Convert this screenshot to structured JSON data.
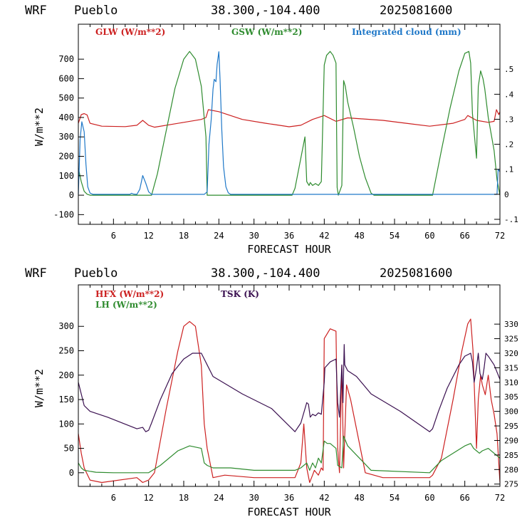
{
  "header": {
    "model": "WRF",
    "station": "Pueblo",
    "coords": "38.300,-104.400",
    "date": "2025081600"
  },
  "colors": {
    "red": "#cc2020",
    "green": "#2e8b2e",
    "blue": "#1f78c8",
    "purple": "#3a1050"
  },
  "chart_data": [
    {
      "type": "line",
      "xlabel": "FORECAST HOUR",
      "ylabel": "W/m**2",
      "xlim": [
        0,
        72
      ],
      "ylim": [
        -150,
        880
      ],
      "y2lim": [
        -0.12,
        0.68
      ],
      "xticks": [
        6,
        12,
        18,
        24,
        30,
        36,
        42,
        48,
        54,
        60,
        66,
        72
      ],
      "yticks": [
        -100,
        0,
        100,
        200,
        300,
        400,
        500,
        600,
        700
      ],
      "y2ticks": [
        -0.1,
        0,
        0.1,
        0.2,
        0.3,
        0.4,
        0.5
      ],
      "y2ticklabels": [
        "-.1",
        "0",
        ".1",
        ".2",
        ".3",
        ".4",
        ".5"
      ],
      "grid": false,
      "legend_position": "top",
      "series": [
        {
          "name": "GLW (W/m**2)",
          "color": "#cc2020",
          "axis": "left",
          "x": [
            0,
            0.5,
            1,
            1.5,
            2,
            4,
            8,
            10,
            11,
            12,
            13,
            18,
            21,
            21.8,
            22.2,
            24,
            28,
            32,
            36,
            38,
            40,
            42,
            44,
            46,
            52,
            56,
            60,
            64,
            66,
            66.5,
            68,
            70,
            71,
            71.4,
            71.8,
            72
          ],
          "y": [
            370,
            415,
            420,
            413,
            370,
            355,
            353,
            360,
            385,
            360,
            350,
            375,
            390,
            400,
            440,
            430,
            390,
            370,
            352,
            360,
            390,
            410,
            380,
            398,
            385,
            370,
            355,
            370,
            390,
            410,
            385,
            375,
            380,
            440,
            415,
            430
          ]
        },
        {
          "name": "GSW (W/m**2)",
          "color": "#2e8b2e",
          "axis": "left",
          "x": [
            0,
            0.5,
            1,
            1.5,
            2,
            12.5,
            13.5,
            15,
            16.5,
            18,
            19,
            20,
            21,
            21.8,
            22,
            36.5,
            37,
            38,
            38.7,
            39,
            39.4,
            39.6,
            40,
            40.5,
            41,
            41.5,
            42,
            42.4,
            43,
            43.5,
            44,
            44.2,
            44.4,
            45,
            45.3,
            45.6,
            46,
            47,
            48,
            49,
            50,
            50.5,
            60.5,
            62,
            63.5,
            65,
            66,
            66.7,
            67,
            67.3,
            68,
            68.3,
            68.7,
            69.1,
            69.4,
            70,
            71,
            71.5,
            72
          ],
          "y": [
            140,
            70,
            20,
            5,
            0,
            0,
            110,
            330,
            550,
            700,
            740,
            700,
            560,
            300,
            0,
            0,
            35,
            190,
            300,
            70,
            50,
            65,
            50,
            60,
            50,
            70,
            670,
            720,
            740,
            720,
            680,
            40,
            0,
            50,
            590,
            560,
            480,
            350,
            200,
            90,
            10,
            0,
            0,
            230,
            450,
            640,
            730,
            740,
            680,
            420,
            190,
            560,
            640,
            600,
            550,
            400,
            230,
            80,
            0
          ]
        },
        {
          "name": "Integrated cloud (mm)",
          "color": "#1f78c8",
          "axis": "right",
          "x": [
            0,
            0.3,
            0.6,
            1,
            1.3,
            1.6,
            2,
            2.5,
            3,
            5,
            8.8,
            9.1,
            9.4,
            10,
            10.5,
            11,
            11.5,
            12,
            12.5,
            21.5,
            22,
            22.3,
            22.7,
            23,
            23.2,
            23.5,
            23.7,
            24,
            24.2,
            24.5,
            24.8,
            25.2,
            25.6,
            26,
            71.5,
            71.7,
            72
          ],
          "y": [
            0,
            0.22,
            0.29,
            0.25,
            0.12,
            0.03,
            0.005,
            0,
            0,
            0,
            0,
            0.004,
            0.001,
            0,
            0.02,
            0.075,
            0.045,
            0.01,
            0,
            0,
            0.01,
            0.2,
            0.3,
            0.42,
            0.46,
            0.45,
            0.52,
            0.57,
            0.46,
            0.26,
            0.11,
            0.03,
            0.006,
            0,
            0,
            0.1,
            0.09
          ]
        }
      ]
    },
    {
      "type": "line",
      "xlabel": "FORECAST HOUR",
      "ylabel": "W/m**2",
      "xlim": [
        0,
        72
      ],
      "ylim": [
        -28,
        385
      ],
      "y2lim": [
        274.2,
        343.5
      ],
      "xticks": [
        6,
        12,
        18,
        24,
        30,
        36,
        42,
        48,
        54,
        60,
        66,
        72
      ],
      "yticks": [
        0,
        50,
        100,
        150,
        200,
        250,
        300
      ],
      "y2ticks": [
        275,
        280,
        285,
        290,
        295,
        300,
        305,
        310,
        315,
        320,
        325,
        330
      ],
      "grid": false,
      "legend_position": "top",
      "series": [
        {
          "name": "HFX (W/m**2)",
          "color": "#cc2020",
          "axis": "left",
          "x": [
            0,
            0.5,
            1,
            2,
            4,
            10,
            11,
            12,
            13,
            15,
            17,
            18,
            19,
            20,
            21,
            21.5,
            22,
            23,
            25,
            30,
            35,
            37,
            38,
            38.5,
            39,
            39.5,
            40,
            40.3,
            41,
            41.5,
            41.8,
            42,
            43,
            44,
            44.3,
            44.6,
            45,
            45.3,
            45.8,
            46.5,
            48,
            49,
            52,
            56,
            60,
            60.5,
            62,
            64,
            65.5,
            66.5,
            67,
            67.4,
            68,
            68.3,
            68.7,
            69,
            69.5,
            70,
            70.5,
            71,
            71.5,
            72
          ],
          "y": [
            80,
            40,
            10,
            -15,
            -20,
            -10,
            -20,
            -15,
            0,
            130,
            250,
            300,
            310,
            300,
            220,
            100,
            50,
            -10,
            -5,
            -10,
            -10,
            -10,
            20,
            100,
            10,
            -20,
            -5,
            5,
            -5,
            10,
            5,
            275,
            295,
            290,
            50,
            0,
            220,
            10,
            180,
            150,
            60,
            0,
            -10,
            -10,
            -10,
            -5,
            30,
            150,
            250,
            305,
            315,
            250,
            50,
            150,
            200,
            180,
            160,
            200,
            150,
            120,
            80,
            -20
          ]
        },
        {
          "name": "LH  (W/m**2)",
          "color": "#2e8b2e",
          "axis": "left",
          "x": [
            0,
            0.5,
            1,
            2,
            3,
            6,
            12,
            14,
            17,
            19,
            21,
            21.5,
            22,
            23,
            26,
            30,
            37,
            38,
            39,
            39.5,
            40,
            40.5,
            41,
            41.5,
            42,
            42.5,
            43,
            44,
            44.3,
            45,
            45.3,
            46,
            48,
            50,
            60,
            62,
            66,
            67,
            67.5,
            68,
            68.5,
            69,
            70,
            72
          ],
          "y": [
            20,
            10,
            5,
            3,
            1,
            0,
            0,
            15,
            45,
            55,
            50,
            20,
            15,
            10,
            10,
            5,
            5,
            10,
            20,
            5,
            20,
            10,
            30,
            20,
            65,
            60,
            60,
            50,
            15,
            10,
            75,
            55,
            30,
            5,
            0,
            25,
            55,
            60,
            50,
            45,
            40,
            45,
            50,
            30
          ]
        },
        {
          "name": "TSK (K)",
          "color": "#3a1050",
          "axis": "right",
          "x": [
            0,
            1,
            2,
            5,
            10,
            11,
            11.5,
            12,
            12.5,
            14,
            16,
            18,
            19.5,
            21,
            21.5,
            22,
            23,
            28,
            33,
            37,
            38,
            39,
            39.3,
            39.6,
            40,
            40.5,
            41,
            41.5,
            42,
            42.1,
            43,
            44,
            44.3,
            44.6,
            45,
            45.2,
            45.4,
            45.5,
            46,
            47.5,
            50,
            55,
            60,
            60.5,
            61.5,
            63,
            65,
            66,
            67,
            67.3,
            67.6,
            68,
            68.3,
            68.6,
            69,
            69.3,
            69.6,
            70,
            71,
            72
          ],
          "y": [
            310,
            302,
            300,
            298,
            294,
            294.5,
            293,
            293.5,
            296,
            304,
            313,
            318,
            320,
            320,
            318,
            316,
            312,
            306,
            301,
            293,
            296,
            303,
            302.5,
            298,
            299,
            298.5,
            299.5,
            299,
            310,
            315,
            317,
            318,
            303,
            298,
            316,
            303,
            323,
            316,
            314,
            312,
            306,
            300,
            293,
            294,
            300,
            308,
            316,
            319,
            320,
            317,
            310,
            315,
            320,
            313,
            311,
            315,
            320,
            319,
            316,
            311
          ]
        }
      ]
    }
  ]
}
